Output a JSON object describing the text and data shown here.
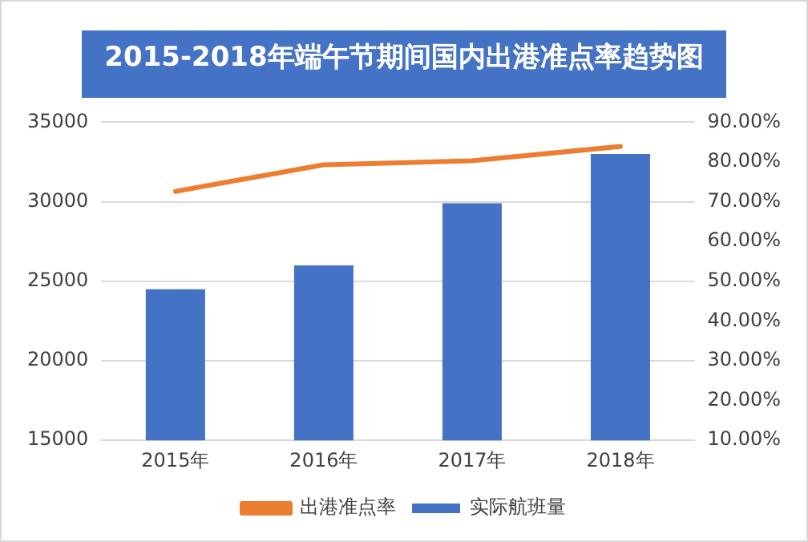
{
  "chart_data": {
    "type": "bar",
    "title": "2015-2018年端午节期间国内出港准点率趋势图",
    "categories": [
      "2015年",
      "2016年",
      "2017年",
      "2018年"
    ],
    "series": [
      {
        "name": "实际航班量",
        "color": "#4472c4",
        "values": [
          24500,
          26000,
          29900,
          33000
        ]
      },
      {
        "name": "出港准点率",
        "type": "line",
        "axis": "y2",
        "color": "#ed7d31",
        "values": [
          72.6,
          79.3,
          80.3,
          83.9
        ]
      }
    ],
    "ylim": [
      15000,
      35000
    ],
    "yticks": [
      15000,
      20000,
      25000,
      30000,
      35000
    ],
    "y2lim": [
      10,
      90
    ],
    "y2ticks": [
      {
        "value": 10,
        "label": "10.00%"
      },
      {
        "value": 20,
        "label": "20.00%"
      },
      {
        "value": 30,
        "label": "30.00%"
      },
      {
        "value": 40,
        "label": "40.00%"
      },
      {
        "value": 50,
        "label": "50.00%"
      },
      {
        "value": 60,
        "label": "60.00%"
      },
      {
        "value": 70,
        "label": "70.00%"
      },
      {
        "value": 80,
        "label": "80.00%"
      },
      {
        "value": 90,
        "label": "90.00%"
      }
    ],
    "grid": "y",
    "legend": "bottom",
    "marker": "none",
    "line_style": "solid"
  }
}
